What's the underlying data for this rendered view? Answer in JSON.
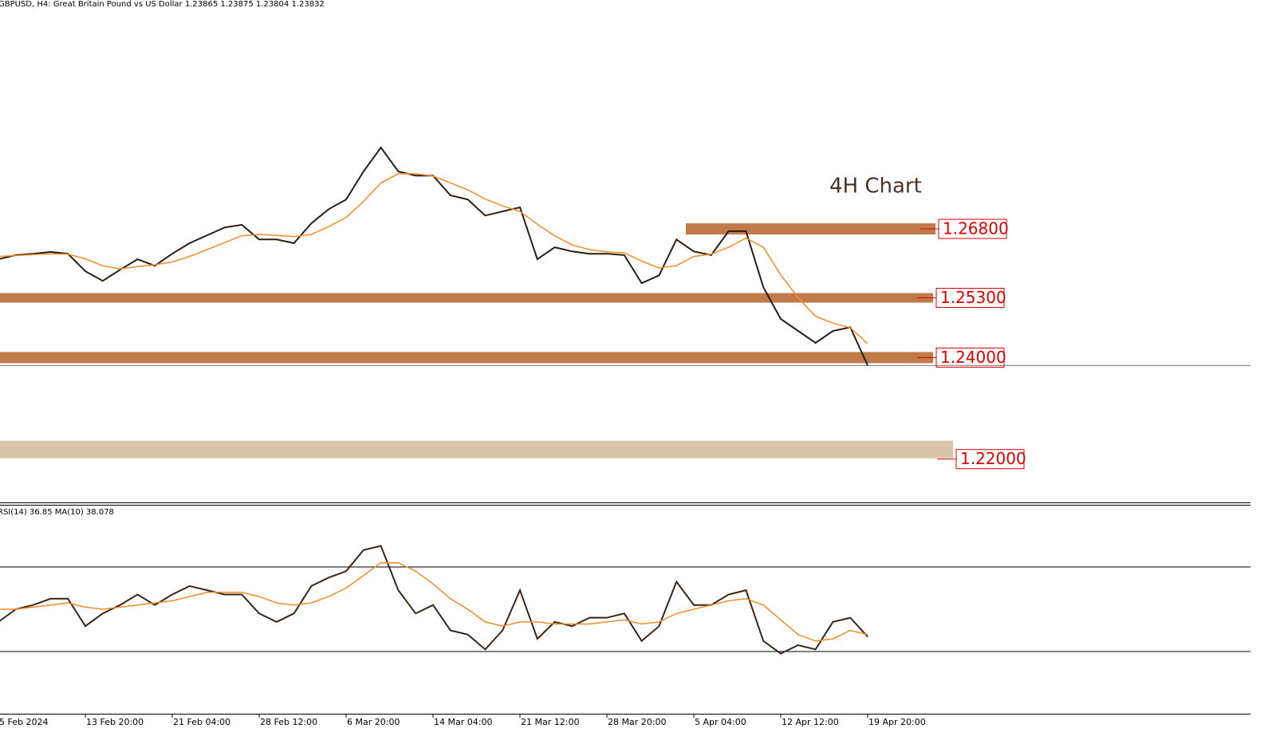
{
  "chart_data": [
    {
      "type": "line",
      "title": "GBPUSD, H4:  Great Britain Pound vs US Dollar  1.23865 1.23875 1.23804 1.23832",
      "annotation": "4H Chart",
      "categories": [
        "5 Feb 2024",
        null,
        null,
        null,
        null,
        "13 Feb 20:00",
        null,
        null,
        null,
        null,
        "21 Feb 04:00",
        null,
        null,
        null,
        null,
        "28 Feb 12:00",
        null,
        null,
        null,
        null,
        "6 Mar 20:00",
        null,
        null,
        null,
        null,
        "14 Mar 04:00",
        null,
        null,
        null,
        null,
        "21 Mar 12:00",
        null,
        null,
        null,
        null,
        "28 Mar 20:00",
        null,
        null,
        null,
        null,
        "5 Apr 04:00",
        null,
        null,
        null,
        null,
        "12 Apr 12:00",
        null,
        null,
        null,
        null,
        "19 Apr 20:00"
      ],
      "series": [
        {
          "name": "GBPUSD",
          "color": "#2b1d12",
          "values": [
            1.2614,
            1.2623,
            1.2626,
            1.263,
            1.2626,
            1.2588,
            1.2567,
            1.2591,
            1.2614,
            1.26,
            1.2626,
            1.2649,
            1.2666,
            1.2683,
            1.2689,
            1.2657,
            1.2657,
            1.2649,
            1.2692,
            1.2723,
            1.2744,
            1.2805,
            1.2857,
            1.2805,
            1.2796,
            1.2796,
            1.2753,
            1.2744,
            1.2709,
            1.2718,
            1.2727,
            1.2614,
            1.264,
            1.2631,
            1.2626,
            1.2626,
            1.2623,
            1.2562,
            1.2579,
            1.2657,
            1.2631,
            1.2623,
            1.2675,
            1.2675,
            1.2553,
            1.2484,
            1.2458,
            1.2432,
            1.2458,
            1.2466,
            1.2383
          ]
        },
        {
          "name": "MA",
          "color": "#f28c28",
          "values": [
            1.262,
            1.2622,
            1.2624,
            1.2626,
            1.2625,
            1.2615,
            1.26,
            1.2593,
            1.2598,
            1.2602,
            1.2608,
            1.262,
            1.2635,
            1.265,
            1.2665,
            1.2668,
            1.2666,
            1.2663,
            1.2668,
            1.2685,
            1.2705,
            1.274,
            1.278,
            1.28,
            1.28,
            1.2795,
            1.278,
            1.2765,
            1.2745,
            1.273,
            1.2718,
            1.269,
            1.2665,
            1.2645,
            1.2635,
            1.263,
            1.2628,
            1.261,
            1.2595,
            1.26,
            1.262,
            1.2625,
            1.264,
            1.266,
            1.264,
            1.258,
            1.253,
            1.249,
            1.2475,
            1.2465,
            1.243
          ]
        }
      ],
      "levels": [
        {
          "value": 1.268,
          "label": "1.26800",
          "color": "#c17a4a"
        },
        {
          "value": 1.253,
          "label": "1.25300",
          "color": "#c17a4a"
        },
        {
          "value": 1.24,
          "label": "1.24000",
          "color": "#c17a4a"
        },
        {
          "value": 1.22,
          "label": "1.22000",
          "color": "#d9c3a9"
        }
      ],
      "ylim": [
        1.2085,
        1.3178
      ]
    },
    {
      "type": "line",
      "title": "RSI(14) 36.85 MA(10) 38.078",
      "series": [
        {
          "name": "RSI(14)",
          "color": "#3a2414",
          "values": [
            44,
            50,
            52,
            55,
            55,
            42,
            48,
            52,
            57,
            52,
            57,
            61,
            59,
            57,
            57,
            48,
            44,
            48,
            61,
            65,
            68,
            78,
            80,
            59,
            48,
            52,
            40,
            38,
            31,
            40,
            59,
            36,
            44,
            42,
            46,
            46,
            48,
            35,
            42,
            63,
            52,
            52,
            57,
            59,
            35,
            29,
            33,
            31,
            44,
            46,
            37
          ]
        },
        {
          "name": "MA(10)",
          "color": "#f28c28",
          "values": [
            50,
            50,
            51,
            52,
            53,
            51,
            50,
            51,
            52,
            53,
            54,
            56,
            58,
            58,
            58,
            56,
            53,
            52,
            53,
            56,
            60,
            66,
            72,
            72,
            68,
            62,
            55,
            50,
            44,
            42,
            44,
            44,
            43,
            43,
            43,
            44,
            45,
            43,
            44,
            48,
            50,
            52,
            54,
            55,
            52,
            45,
            38,
            35,
            36,
            40,
            38
          ]
        }
      ],
      "levels": [
        70,
        30
      ],
      "ylim": [
        0,
        100
      ]
    }
  ]
}
